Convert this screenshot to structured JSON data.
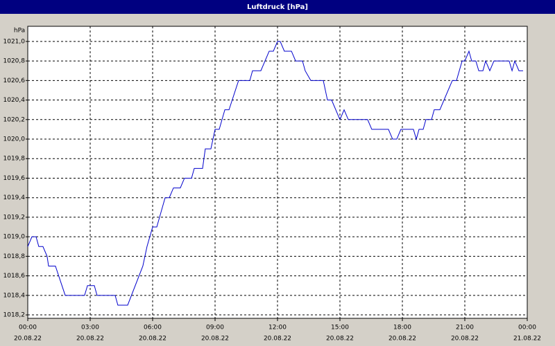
{
  "chart_data": {
    "type": "line",
    "title": "Luftdruck [hPa]",
    "y_unit": "hPa",
    "x": [
      0,
      0.2,
      0.4,
      0.53,
      0.73,
      0.93,
      1,
      1.33,
      1.8,
      2.73,
      2.87,
      3.2,
      3.33,
      4.2,
      4.33,
      4.8,
      5.53,
      5.73,
      6,
      6.2,
      6.6,
      6.8,
      7,
      7.33,
      7.53,
      7.87,
      8,
      8.4,
      8.53,
      8.8,
      9,
      9.2,
      9.47,
      9.67,
      10.13,
      10.67,
      10.8,
      11.2,
      11.6,
      11.8,
      12,
      12.13,
      12.33,
      12.67,
      12.87,
      13.2,
      13.33,
      13.6,
      14.2,
      14.4,
      14.6,
      15,
      15.2,
      15.4,
      16.33,
      16.53,
      17.33,
      17.53,
      17.73,
      17.93,
      18.53,
      18.67,
      18.8,
      19,
      19.13,
      19.4,
      19.53,
      19.8,
      20.4,
      20.6,
      20.87,
      21,
      21.2,
      21.33,
      21.53,
      21.67,
      21.87,
      22,
      22.2,
      22.4,
      23.13,
      23.27,
      23.4,
      23.6,
      23.8
    ],
    "series": [
      {
        "name": "Luftdruck",
        "color": "#0000cc",
        "values": [
          1018.9,
          1019.0,
          1019.0,
          1018.9,
          1018.9,
          1018.8,
          1018.7,
          1018.7,
          1018.4,
          1018.4,
          1018.5,
          1018.5,
          1018.4,
          1018.4,
          1018.3,
          1018.3,
          1018.7,
          1018.9,
          1019.1,
          1019.1,
          1019.4,
          1019.4,
          1019.5,
          1019.5,
          1019.6,
          1019.6,
          1019.7,
          1019.7,
          1019.9,
          1019.9,
          1020.1,
          1020.1,
          1020.3,
          1020.3,
          1020.6,
          1020.6,
          1020.7,
          1020.7,
          1020.9,
          1020.9,
          1021.0,
          1021.0,
          1020.9,
          1020.9,
          1020.8,
          1020.8,
          1020.7,
          1020.6,
          1020.6,
          1020.4,
          1020.4,
          1020.2,
          1020.3,
          1020.2,
          1020.2,
          1020.1,
          1020.1,
          1020.0,
          1020.0,
          1020.1,
          1020.1,
          1020.0,
          1020.1,
          1020.1,
          1020.2,
          1020.2,
          1020.3,
          1020.3,
          1020.6,
          1020.6,
          1020.8,
          1020.8,
          1020.9,
          1020.8,
          1020.8,
          1020.7,
          1020.7,
          1020.8,
          1020.7,
          1020.8,
          1020.8,
          1020.7,
          1020.8,
          1020.7,
          1020.7
        ]
      }
    ],
    "xlim": [
      0,
      24
    ],
    "xticks": [
      {
        "value": 0,
        "label": "00:00"
      },
      {
        "value": 3,
        "label": "03:00"
      },
      {
        "value": 6,
        "label": "06:00"
      },
      {
        "value": 9,
        "label": "09:00"
      },
      {
        "value": 12,
        "label": "12:00"
      },
      {
        "value": 15,
        "label": "15:00"
      },
      {
        "value": 18,
        "label": "18:00"
      },
      {
        "value": 21,
        "label": "21:00"
      },
      {
        "value": 24,
        "label": "00:00"
      }
    ],
    "xtick_dates": [
      "20.08.22",
      "20.08.22",
      "20.08.22",
      "20.08.22",
      "20.08.22",
      "20.08.22",
      "20.08.22",
      "20.08.22",
      "21.08.22"
    ],
    "ylim": [
      1018.165,
      1021.155
    ],
    "yticks": [
      {
        "value": 1018.2,
        "label": "1018,2"
      },
      {
        "value": 1018.4,
        "label": "1018,4"
      },
      {
        "value": 1018.6,
        "label": "1018,6"
      },
      {
        "value": 1018.8,
        "label": "1018,8"
      },
      {
        "value": 1019.0,
        "label": "1019,0"
      },
      {
        "value": 1019.2,
        "label": "1019,2"
      },
      {
        "value": 1019.4,
        "label": "1019,4"
      },
      {
        "value": 1019.6,
        "label": "1019,6"
      },
      {
        "value": 1019.8,
        "label": "1019,8"
      },
      {
        "value": 1020.0,
        "label": "1020,0"
      },
      {
        "value": 1020.2,
        "label": "1020,2"
      },
      {
        "value": 1020.4,
        "label": "1020,4"
      },
      {
        "value": 1020.6,
        "label": "1020,6"
      },
      {
        "value": 1020.8,
        "label": "1020,8"
      },
      {
        "value": 1021.0,
        "label": "1021,0"
      }
    ],
    "grid": true
  }
}
